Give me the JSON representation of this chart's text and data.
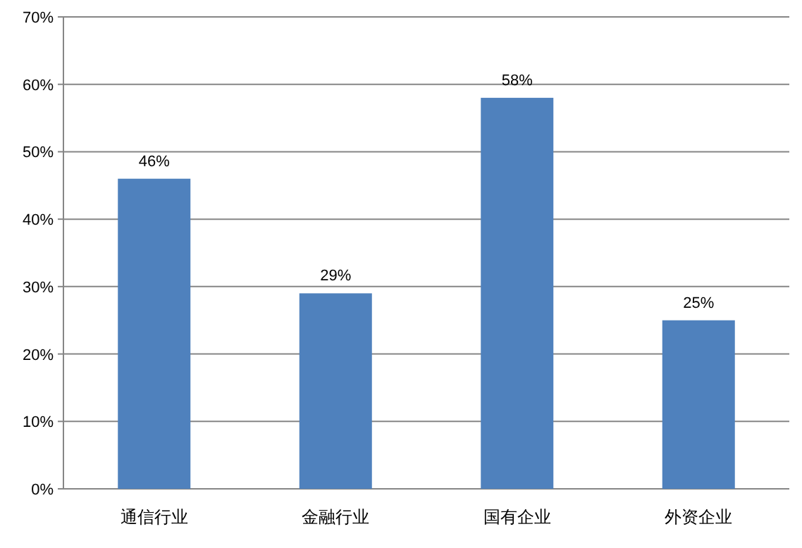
{
  "chart_data": {
    "type": "bar",
    "categories": [
      "通信行业",
      "金融行业",
      "国有企业",
      "外资企业"
    ],
    "values": [
      46,
      29,
      58,
      25
    ],
    "value_labels": [
      "46%",
      "29%",
      "58%",
      "25%"
    ],
    "color": "#4f81bd",
    "ylim": [
      0,
      70
    ],
    "yticks": [
      {
        "value": 0,
        "label": "0%"
      },
      {
        "value": 10,
        "label": "10%"
      },
      {
        "value": 20,
        "label": "20%"
      },
      {
        "value": 30,
        "label": "30%"
      },
      {
        "value": 40,
        "label": "40%"
      },
      {
        "value": 50,
        "label": "50%"
      },
      {
        "value": 60,
        "label": "60%"
      },
      {
        "value": 70,
        "label": "70%"
      }
    ],
    "grid": "y"
  }
}
